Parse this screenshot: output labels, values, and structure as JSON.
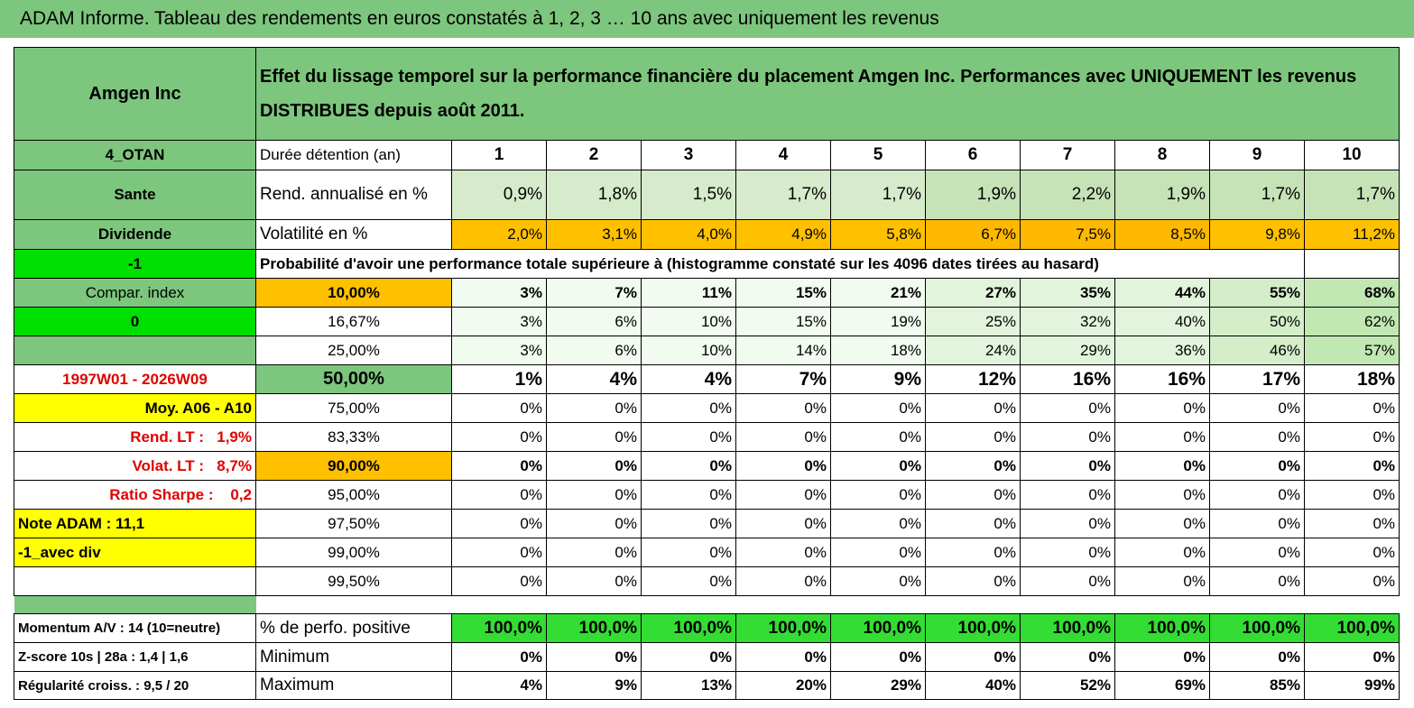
{
  "title": "ADAM Informe. Tableau des rendements en euros constatés à 1, 2, 3 … 10 ans avec uniquement les revenus",
  "table": {
    "corner": "Amgen Inc",
    "description": "Effet du lissage temporel sur la performance financière du placement Amgen Inc. Performances avec UNIQUEMENT les revenus DISTRIBUES depuis août 2011.",
    "rows": [
      {
        "label": "4_OTAN",
        "metric": "Durée détention (an)",
        "cells": [
          "1",
          "2",
          "3",
          "4",
          "5",
          "6",
          "7",
          "8",
          "9",
          "10"
        ]
      },
      {
        "label": "Sante",
        "metric": "Rend. annualisé en %",
        "cells": [
          "0,9%",
          "1,8%",
          "1,5%",
          "1,7%",
          "1,7%",
          "1,9%",
          "2,2%",
          "1,9%",
          "1,7%",
          "1,7%"
        ]
      },
      {
        "label": "Dividende",
        "metric": "Volatilité en %",
        "cells": [
          "2,0%",
          "3,1%",
          "4,0%",
          "4,9%",
          "5,8%",
          "6,7%",
          "7,5%",
          "8,5%",
          "9,8%",
          "11,2%"
        ]
      },
      {
        "label": "-1",
        "metric": "Probabilité d'avoir une performance totale supérieure à (histogramme constaté sur les 4096 dates tirées au hasard)"
      },
      {
        "label": "Compar. index",
        "metric": "10,00%",
        "cells": [
          "3%",
          "7%",
          "11%",
          "15%",
          "21%",
          "27%",
          "35%",
          "44%",
          "55%",
          "68%"
        ]
      },
      {
        "label": "0",
        "metric": "16,67%",
        "cells": [
          "3%",
          "6%",
          "10%",
          "15%",
          "19%",
          "25%",
          "32%",
          "40%",
          "50%",
          "62%"
        ]
      },
      {
        "metric": "25,00%",
        "cells": [
          "3%",
          "6%",
          "10%",
          "14%",
          "18%",
          "24%",
          "29%",
          "36%",
          "46%",
          "57%"
        ]
      },
      {
        "label": "1997W01 - 2026W09",
        "metric": "50,00%",
        "cells": [
          "1%",
          "4%",
          "4%",
          "7%",
          "9%",
          "12%",
          "16%",
          "16%",
          "17%",
          "18%"
        ]
      },
      {
        "label": "Moy. A06 - A10",
        "metric": "75,00%",
        "cells": [
          "0%",
          "0%",
          "0%",
          "0%",
          "0%",
          "0%",
          "0%",
          "0%",
          "0%",
          "0%"
        ]
      },
      {
        "label": "Rend. LT :   1,9%",
        "metric": "83,33%",
        "cells": [
          "0%",
          "0%",
          "0%",
          "0%",
          "0%",
          "0%",
          "0%",
          "0%",
          "0%",
          "0%"
        ]
      },
      {
        "label": "Volat. LT :   8,7%",
        "metric": "90,00%",
        "cells": [
          "0%",
          "0%",
          "0%",
          "0%",
          "0%",
          "0%",
          "0%",
          "0%",
          "0%",
          "0%"
        ]
      },
      {
        "label": "Ratio Sharpe :    0,2",
        "metric": "95,00%",
        "cells": [
          "0%",
          "0%",
          "0%",
          "0%",
          "0%",
          "0%",
          "0%",
          "0%",
          "0%",
          "0%"
        ]
      },
      {
        "label": "Note ADAM : 11,1",
        "metric": "97,50%",
        "cells": [
          "0%",
          "0%",
          "0%",
          "0%",
          "0%",
          "0%",
          "0%",
          "0%",
          "0%",
          "0%"
        ]
      },
      {
        "label": "-1_avec div",
        "metric": "99,00%",
        "cells": [
          "0%",
          "0%",
          "0%",
          "0%",
          "0%",
          "0%",
          "0%",
          "0%",
          "0%",
          "0%"
        ]
      },
      {
        "metric": "99,50%",
        "cells": [
          "0%",
          "0%",
          "0%",
          "0%",
          "0%",
          "0%",
          "0%",
          "0%",
          "0%",
          "0%"
        ]
      },
      {
        "label": "Momentum A/V : 14 (10=neutre)",
        "metric": "% de perfo. positive",
        "cells": [
          "100,0%",
          "100,0%",
          "100,0%",
          "100,0%",
          "100,0%",
          "100,0%",
          "100,0%",
          "100,0%",
          "100,0%",
          "100,0%"
        ]
      },
      {
        "label": "Z-score 10s | 28a : 1,4 | 1,6",
        "metric": "Minimum",
        "cells": [
          "0%",
          "0%",
          "0%",
          "0%",
          "0%",
          "0%",
          "0%",
          "0%",
          "0%",
          "0%"
        ]
      },
      {
        "label": "Régularité croiss. : 9,5 / 20",
        "metric": "Maximum",
        "cells": [
          "4%",
          "9%",
          "13%",
          "20%",
          "29%",
          "40%",
          "52%",
          "69%",
          "85%",
          "99%"
        ]
      }
    ]
  }
}
